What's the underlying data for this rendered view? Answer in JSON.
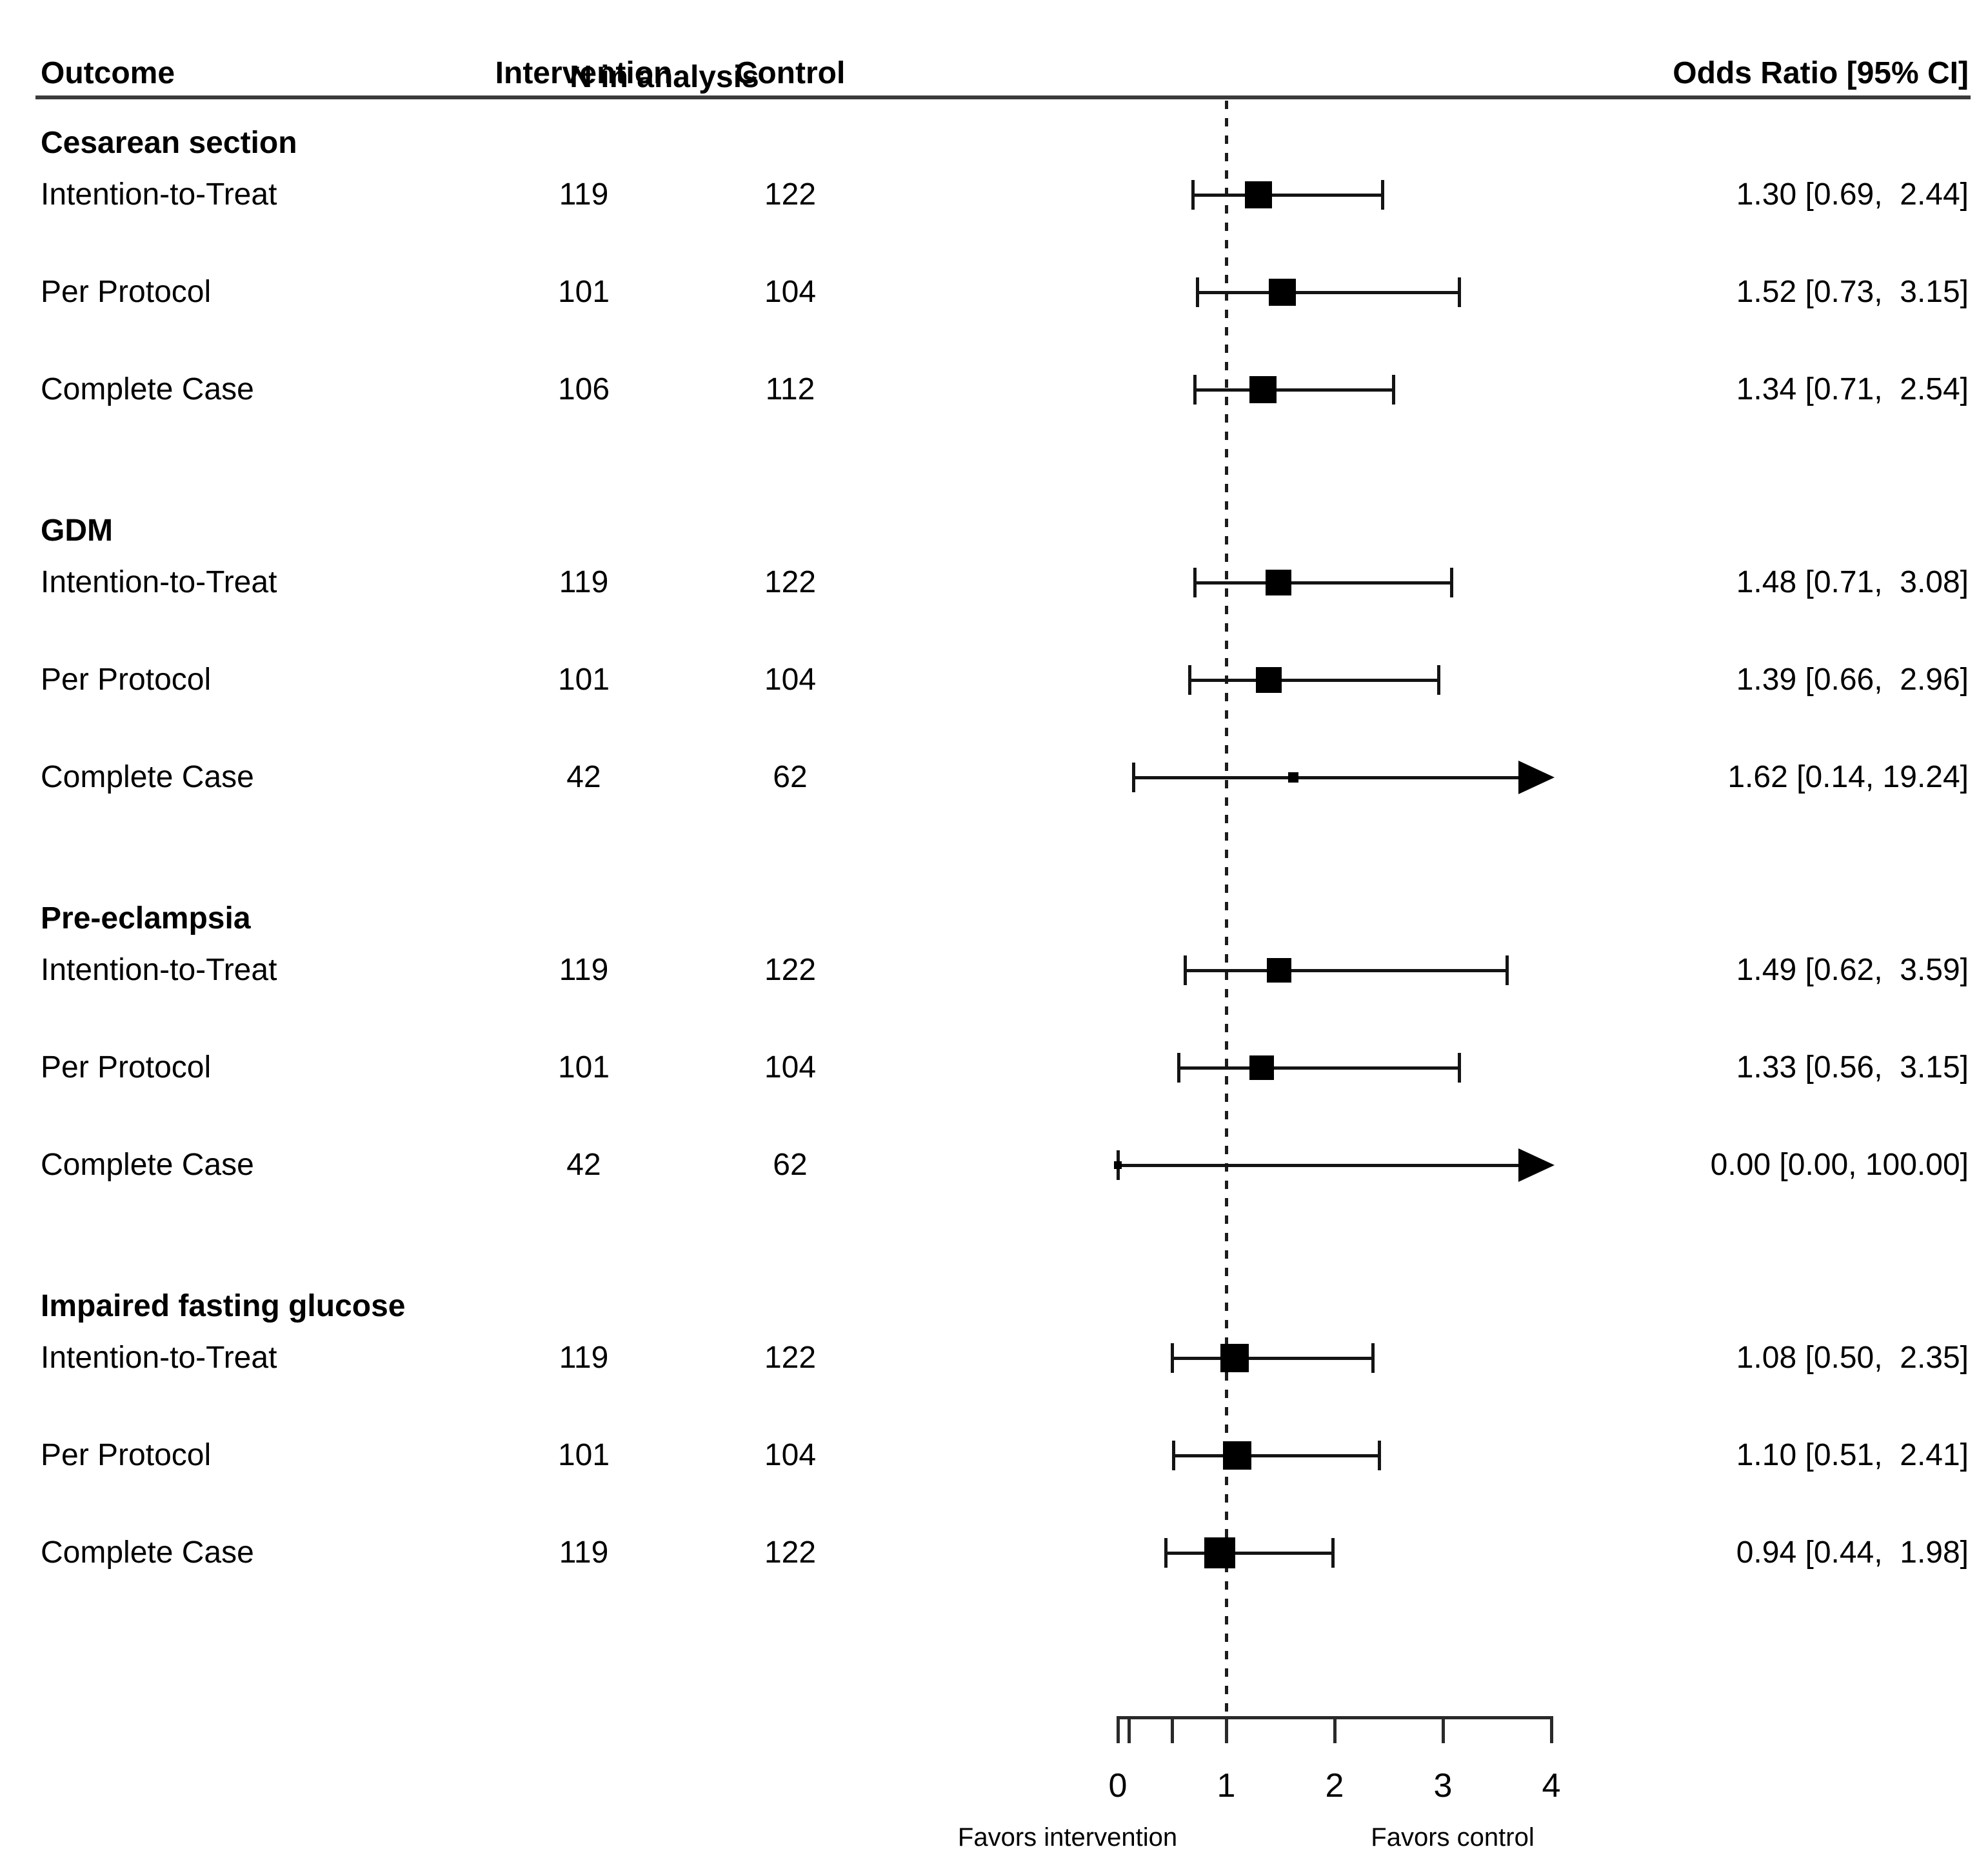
{
  "header": {
    "outcome": "Outcome",
    "n_in_analysis": "N in analysis",
    "intervention": "Intervention",
    "control": "Control",
    "odds_ratio": "Odds Ratio [95% CI]"
  },
  "axis": {
    "tick_labels": [
      "0",
      "1",
      "2",
      "3",
      "4"
    ],
    "favors_left": "Favors intervention",
    "favors_right": "Favors control"
  },
  "colors": {
    "foreground": "#000000",
    "background": "#ffffff",
    "header_rule": "#3b3b3b"
  },
  "chart_data": {
    "type": "forest",
    "title": "",
    "xlim": [
      0,
      4
    ],
    "major_ticks": [
      0,
      1,
      2,
      3,
      4
    ],
    "minor_ticks": [
      0.1,
      0.5
    ],
    "reference_line": 1,
    "xlabel_left": "Favors intervention",
    "xlabel_right": "Favors control",
    "legend_position": "none",
    "grid": false,
    "groups": [
      {
        "outcome": "Cesarean section",
        "rows": [
          {
            "analysis": "Intention-to-Treat",
            "n_intervention": 119,
            "n_control": 122,
            "or": 1.3,
            "ci_low": 0.69,
            "ci_high": 2.44,
            "or_text": "1.30 [0.69,  2.44]",
            "marker_size": 42
          },
          {
            "analysis": "Per Protocol",
            "n_intervention": 101,
            "n_control": 104,
            "or": 1.52,
            "ci_low": 0.73,
            "ci_high": 3.15,
            "or_text": "1.52 [0.73,  3.15]",
            "marker_size": 42
          },
          {
            "analysis": "Complete Case",
            "n_intervention": 106,
            "n_control": 112,
            "or": 1.34,
            "ci_low": 0.71,
            "ci_high": 2.54,
            "or_text": "1.34 [0.71,  2.54]",
            "marker_size": 42
          }
        ]
      },
      {
        "outcome": "GDM",
        "rows": [
          {
            "analysis": "Intention-to-Treat",
            "n_intervention": 119,
            "n_control": 122,
            "or": 1.48,
            "ci_low": 0.71,
            "ci_high": 3.08,
            "or_text": "1.48 [0.71,  3.08]",
            "marker_size": 40
          },
          {
            "analysis": "Per Protocol",
            "n_intervention": 101,
            "n_control": 104,
            "or": 1.39,
            "ci_low": 0.66,
            "ci_high": 2.96,
            "or_text": "1.39 [0.66,  2.96]",
            "marker_size": 40
          },
          {
            "analysis": "Complete Case",
            "n_intervention": 42,
            "n_control": 62,
            "or": 1.62,
            "ci_low": 0.14,
            "ci_high": 19.24,
            "or_text": "1.62 [0.14, 19.24]",
            "marker_size": 16
          }
        ]
      },
      {
        "outcome": "Pre-eclampsia",
        "rows": [
          {
            "analysis": "Intention-to-Treat",
            "n_intervention": 119,
            "n_control": 122,
            "or": 1.49,
            "ci_low": 0.62,
            "ci_high": 3.59,
            "or_text": "1.49 [0.62,  3.59]",
            "marker_size": 38
          },
          {
            "analysis": "Per Protocol",
            "n_intervention": 101,
            "n_control": 104,
            "or": 1.33,
            "ci_low": 0.56,
            "ci_high": 3.15,
            "or_text": "1.33 [0.56,  3.15]",
            "marker_size": 38
          },
          {
            "analysis": "Complete Case",
            "n_intervention": 42,
            "n_control": 62,
            "or": 0.0,
            "ci_low": 0.0,
            "ci_high": 100.0,
            "or_text": "0.00 [0.00, 100.00]",
            "marker_size": 12
          }
        ]
      },
      {
        "outcome": "Impaired fasting glucose",
        "rows": [
          {
            "analysis": "Intention-to-Treat",
            "n_intervention": 119,
            "n_control": 122,
            "or": 1.08,
            "ci_low": 0.5,
            "ci_high": 2.35,
            "or_text": "1.08 [0.50,  2.35]",
            "marker_size": 44
          },
          {
            "analysis": "Per Protocol",
            "n_intervention": 101,
            "n_control": 104,
            "or": 1.1,
            "ci_low": 0.51,
            "ci_high": 2.41,
            "or_text": "1.10 [0.51,  2.41]",
            "marker_size": 44
          },
          {
            "analysis": "Complete Case",
            "n_intervention": 119,
            "n_control": 122,
            "or": 0.94,
            "ci_low": 0.44,
            "ci_high": 1.98,
            "or_text": "0.94 [0.44,  1.98]",
            "marker_size": 48
          }
        ]
      }
    ]
  }
}
